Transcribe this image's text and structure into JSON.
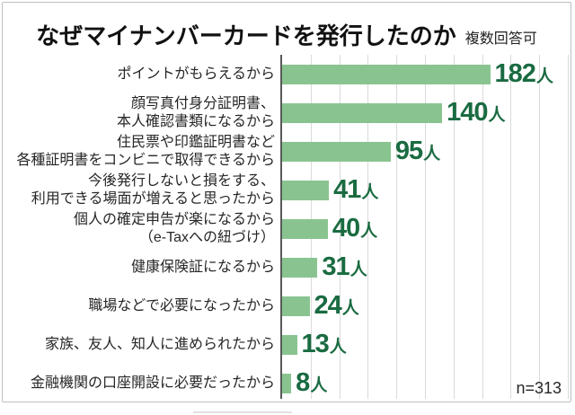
{
  "title": "なぜマイナンバーカードを発行したのか",
  "note": "複数回答可",
  "sample_size_label": "n=313",
  "colors": {
    "bar": "#89c490",
    "value_label": "#1a6b41",
    "axis": "#595959",
    "gridline": "#dadada"
  },
  "chart_data": {
    "type": "bar",
    "orientation": "horizontal",
    "title": "なぜマイナンバーカードを発行したのか",
    "note": "複数回答可",
    "sample_size": 313,
    "unit": "人",
    "xlim": [
      0,
      250
    ],
    "grid_step": 25,
    "grid": true,
    "legend": false,
    "categories": [
      "ポイントがもらえるから",
      "顔写真付身分証明書、本人確認書類になるから",
      "住民票や印鑑証明書など各種証明書をコンビニで取得できるから",
      "今後発行しないと損をする、利用できる場面が増えると思ったから",
      "個人の確定申告が楽になるから（e-Taxへの紐づけ）",
      "健康保険証になるから",
      "職場などで必要になったから",
      "家族、友人、知人に進められたから",
      "金融機関の口座開設に必要だったから"
    ],
    "values": [
      182,
      140,
      95,
      41,
      40,
      31,
      24,
      13,
      8
    ],
    "rows": [
      {
        "label_lines": [
          "ポイントがもらえるから"
        ],
        "value": 182
      },
      {
        "label_lines": [
          "顔写真付身分証明書、",
          "本人確認書類になるから"
        ],
        "value": 140
      },
      {
        "label_lines": [
          "住民票や印鑑証明書など",
          "各種証明書をコンビニで取得できるから"
        ],
        "value": 95
      },
      {
        "label_lines": [
          "今後発行しないと損をする、",
          "利用できる場面が増えると思ったから"
        ],
        "value": 41
      },
      {
        "label_lines": [
          "個人の確定申告が楽になるから",
          "（e-Taxへの紐づけ）"
        ],
        "value": 40
      },
      {
        "label_lines": [
          "健康保険証になるから"
        ],
        "value": 31
      },
      {
        "label_lines": [
          "職場などで必要になったから"
        ],
        "value": 24
      },
      {
        "label_lines": [
          "家族、友人、知人に進められたから"
        ],
        "value": 13
      },
      {
        "label_lines": [
          "金融機関の口座開設に必要だったから"
        ],
        "value": 8
      }
    ]
  }
}
